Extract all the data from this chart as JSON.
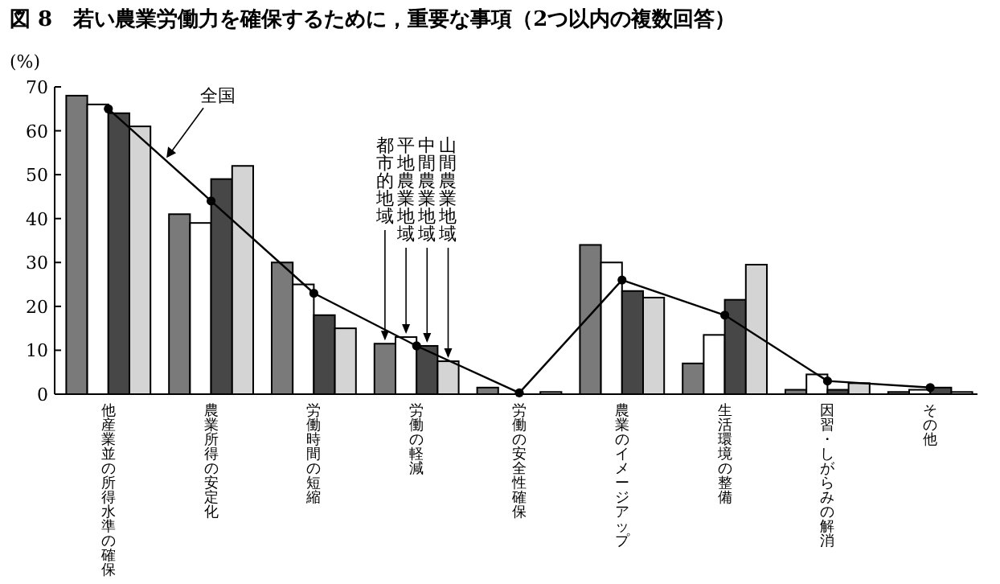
{
  "chart_data": {
    "type": "bar",
    "title": "図 8　若い農業労働力を確保するために，重要な事項（2つ以内の複数回答）",
    "ylabel": "(%)",
    "categories": [
      "他産業並の所得水準の確保",
      "農業所得の安定化",
      "労働時間の短縮",
      "労働の軽減",
      "労働の安全性確保",
      "農業のイメージアップ",
      "生活環境の整備",
      "因習・しがらみの解消",
      "その他"
    ],
    "series": [
      {
        "name": "都市的地域",
        "color": "#7a7a7a",
        "values": [
          68,
          41,
          30,
          11.5,
          1.5,
          34,
          7,
          1,
          0.5
        ]
      },
      {
        "name": "平地農業地域",
        "color": "#ffffff",
        "values": [
          66,
          39,
          25,
          13,
          null,
          30,
          13.5,
          4.5,
          1
        ]
      },
      {
        "name": "中間農業地域",
        "color": "#474747",
        "values": [
          64,
          49,
          18,
          11,
          null,
          23.5,
          21.5,
          1,
          1.5
        ]
      },
      {
        "name": "山間農業地域",
        "color": "#d4d4d4",
        "values": [
          61,
          52,
          15,
          7.5,
          0.5,
          22,
          29.5,
          2.5,
          0.5
        ]
      },
      {
        "name": "全国",
        "type": "line",
        "color": "#000000",
        "values": [
          65,
          44,
          23,
          11,
          0.3,
          26,
          18,
          3,
          1.5
        ]
      }
    ],
    "ylim": [
      0,
      70
    ],
    "yticks": [
      0,
      10,
      20,
      30,
      40,
      50,
      60,
      70
    ],
    "marker": "circle",
    "line_style": "solid",
    "grid": false
  }
}
